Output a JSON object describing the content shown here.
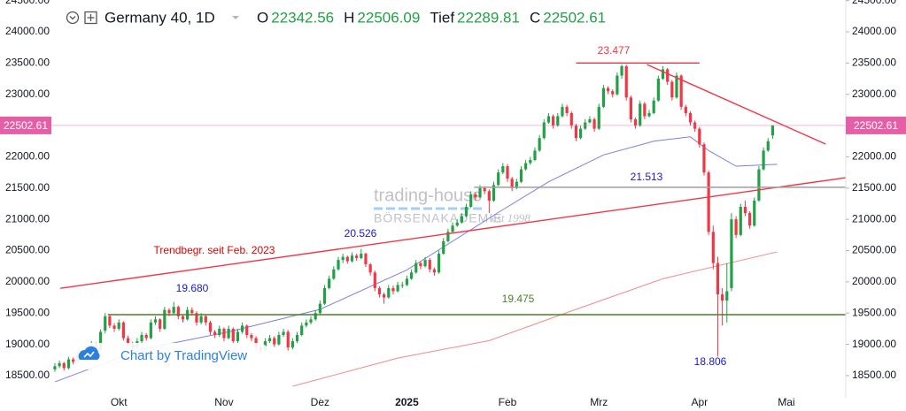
{
  "chart_data": {
    "type": "candlestick",
    "title": "Germany 40, 1D",
    "ohlc_labels": [
      "O",
      "H",
      "Tief",
      "C"
    ],
    "colors": {
      "up": "#22a046",
      "down": "#f23645",
      "last": "#e55fa6"
    },
    "xlim": [
      -12,
      173
    ],
    "ylim": [
      18146,
      24509
    ],
    "grid": false,
    "yticks": [
      {
        "value": 18500,
        "label": "18500.00"
      },
      {
        "value": 19000,
        "label": "19000.00"
      },
      {
        "value": 19500,
        "label": "19500.00"
      },
      {
        "value": 20000,
        "label": "20000.00"
      },
      {
        "value": 20500,
        "label": "20500.00"
      },
      {
        "value": 21000,
        "label": "21000.00"
      },
      {
        "value": 21500,
        "label": "21500.00"
      },
      {
        "value": 22000,
        "label": "22000.00"
      },
      {
        "value": 22500,
        "label": "22500.00"
      },
      {
        "value": 23000,
        "label": "23000.00"
      },
      {
        "value": 23500,
        "label": "23500.00"
      },
      {
        "value": 24000,
        "label": "24000.00"
      },
      {
        "value": 24500,
        "label": "24500.00"
      }
    ],
    "xticks": [
      {
        "value": 14,
        "label": "Okt"
      },
      {
        "value": 37,
        "label": "Nov"
      },
      {
        "value": 58,
        "label": "Dez"
      },
      {
        "value": 77,
        "label": "2025"
      },
      {
        "value": 99,
        "label": "Feb"
      },
      {
        "value": 119,
        "label": "Mrz"
      },
      {
        "value": 141,
        "label": "Apr"
      },
      {
        "value": 160,
        "label": "Mai"
      }
    ],
    "ohlc": [
      [
        18600,
        18700,
        18560,
        18650
      ],
      [
        18650,
        18740,
        18620,
        18700
      ],
      [
        18700,
        18720,
        18580,
        18620
      ],
      [
        18620,
        18800,
        18600,
        18760
      ],
      [
        18760,
        18790,
        18680,
        18720
      ],
      [
        18720,
        18890,
        18700,
        18850
      ],
      [
        18850,
        18880,
        18760,
        18800
      ],
      [
        18800,
        18990,
        18780,
        18950
      ],
      [
        18950,
        19050,
        18920,
        19000
      ],
      [
        19000,
        19030,
        18880,
        18920
      ],
      [
        18920,
        19240,
        18900,
        19200
      ],
      [
        19220,
        19500,
        19180,
        19450
      ],
      [
        19450,
        19480,
        19260,
        19300
      ],
      [
        19300,
        19340,
        19200,
        19250
      ],
      [
        19250,
        19400,
        19220,
        19350
      ],
      [
        19350,
        19370,
        19060,
        19100
      ],
      [
        19100,
        19140,
        18960,
        19000
      ],
      [
        19000,
        19040,
        18900,
        18950
      ],
      [
        18950,
        19100,
        18920,
        19050
      ],
      [
        19050,
        19200,
        19020,
        19150
      ],
      [
        19150,
        19180,
        19060,
        19100
      ],
      [
        19100,
        19400,
        19080,
        19350
      ],
      [
        19350,
        19450,
        19310,
        19400
      ],
      [
        19400,
        19420,
        19200,
        19250
      ],
      [
        19250,
        19600,
        19230,
        19550
      ],
      [
        19550,
        19580,
        19450,
        19500
      ],
      [
        19500,
        19680,
        19470,
        19600
      ],
      [
        19600,
        19620,
        19400,
        19450
      ],
      [
        19450,
        19480,
        19350,
        19400
      ],
      [
        19400,
        19600,
        19380,
        19550
      ],
      [
        19550,
        19590,
        19460,
        19500
      ],
      [
        19500,
        19530,
        19300,
        19350
      ],
      [
        19350,
        19500,
        19320,
        19450
      ],
      [
        19450,
        19470,
        19300,
        19350
      ],
      [
        19350,
        19380,
        19150,
        19200
      ],
      [
        19200,
        19230,
        19100,
        19150
      ],
      [
        19150,
        19300,
        19120,
        19250
      ],
      [
        19250,
        19270,
        19050,
        19100
      ],
      [
        19100,
        19300,
        19080,
        19250
      ],
      [
        19250,
        19270,
        19000,
        19050
      ],
      [
        19050,
        19250,
        19020,
        19200
      ],
      [
        19200,
        19350,
        19170,
        19300
      ],
      [
        19300,
        19320,
        19100,
        19150
      ],
      [
        19150,
        19180,
        19050,
        19100
      ],
      [
        19100,
        19130,
        18900,
        18950
      ],
      [
        18950,
        18980,
        18850,
        18900
      ],
      [
        18900,
        19100,
        18880,
        19050
      ],
      [
        19050,
        19150,
        19020,
        19100
      ],
      [
        19100,
        19130,
        18960,
        19000
      ],
      [
        19000,
        19200,
        18980,
        19150
      ],
      [
        19150,
        19250,
        19120,
        19200
      ],
      [
        19200,
        19230,
        18900,
        18950
      ],
      [
        18950,
        19100,
        18920,
        19050
      ],
      [
        19050,
        19200,
        19020,
        19150
      ],
      [
        19150,
        19350,
        19130,
        19300
      ],
      [
        19300,
        19400,
        19270,
        19350
      ],
      [
        19350,
        19450,
        19320,
        19400
      ],
      [
        19400,
        19550,
        19380,
        19500
      ],
      [
        19500,
        19700,
        19480,
        19650
      ],
      [
        19650,
        19950,
        19630,
        19900
      ],
      [
        19900,
        20100,
        19880,
        20050
      ],
      [
        20050,
        20250,
        20030,
        20200
      ],
      [
        20200,
        20400,
        20180,
        20350
      ],
      [
        20350,
        20450,
        20300,
        20400
      ],
      [
        20400,
        20420,
        20290,
        20330
      ],
      [
        20330,
        20470,
        20310,
        20420
      ],
      [
        20420,
        20450,
        20340,
        20380
      ],
      [
        20380,
        20526,
        20360,
        20450
      ],
      [
        20450,
        20470,
        20240,
        20280
      ],
      [
        20280,
        20300,
        20100,
        20150
      ],
      [
        20150,
        20180,
        19850,
        19900
      ],
      [
        19900,
        19930,
        19750,
        19800
      ],
      [
        19800,
        19830,
        19650,
        19750
      ],
      [
        19750,
        19950,
        19730,
        19900
      ],
      [
        19900,
        19940,
        19800,
        19850
      ],
      [
        19850,
        20000,
        19830,
        19950
      ],
      [
        19950,
        20000,
        19900,
        19950
      ],
      [
        19950,
        20100,
        19930,
        20050
      ],
      [
        20050,
        20200,
        20030,
        20150
      ],
      [
        20150,
        20350,
        20130,
        20300
      ],
      [
        20300,
        20330,
        20200,
        20250
      ],
      [
        20250,
        20400,
        20230,
        20350
      ],
      [
        20350,
        20380,
        20150,
        20200
      ],
      [
        20200,
        20230,
        20100,
        20150
      ],
      [
        20150,
        20500,
        20130,
        20450
      ],
      [
        20450,
        20700,
        20430,
        20650
      ],
      [
        20650,
        20850,
        20630,
        20800
      ],
      [
        20800,
        20950,
        20780,
        20900
      ],
      [
        20900,
        21000,
        20880,
        20950
      ],
      [
        20950,
        21100,
        20930,
        21050
      ],
      [
        21050,
        21250,
        21030,
        21200
      ],
      [
        21200,
        21450,
        21180,
        21400
      ],
      [
        21400,
        21430,
        21300,
        21350
      ],
      [
        21350,
        21550,
        21330,
        21500
      ],
      [
        21500,
        21530,
        21400,
        21450
      ],
      [
        21450,
        21480,
        21100,
        21300
      ],
      [
        21300,
        21600,
        21280,
        21550
      ],
      [
        21550,
        21800,
        21530,
        21750
      ],
      [
        21750,
        21900,
        21720,
        21850
      ],
      [
        21850,
        21880,
        21600,
        21650
      ],
      [
        21650,
        21680,
        21450,
        21500
      ],
      [
        21500,
        21650,
        21480,
        21600
      ],
      [
        21600,
        21850,
        21580,
        21800
      ],
      [
        21800,
        21950,
        21780,
        21900
      ],
      [
        21900,
        22000,
        21870,
        21950
      ],
      [
        21950,
        22150,
        21930,
        22100
      ],
      [
        22100,
        22350,
        22080,
        22300
      ],
      [
        22300,
        22600,
        22280,
        22550
      ],
      [
        22550,
        22700,
        22530,
        22650
      ],
      [
        22650,
        22680,
        22450,
        22500
      ],
      [
        22500,
        22700,
        22480,
        22650
      ],
      [
        22650,
        22850,
        22630,
        22800
      ],
      [
        22800,
        22830,
        22650,
        22700
      ],
      [
        22700,
        22730,
        22450,
        22500
      ],
      [
        22500,
        22530,
        22250,
        22300
      ],
      [
        22300,
        22500,
        22280,
        22450
      ],
      [
        22450,
        22600,
        22430,
        22550
      ],
      [
        22550,
        22650,
        22530,
        22600
      ],
      [
        22600,
        22630,
        22400,
        22450
      ],
      [
        22450,
        22850,
        22430,
        22800
      ],
      [
        22800,
        23150,
        22780,
        23100
      ],
      [
        23100,
        23130,
        23000,
        23050
      ],
      [
        23050,
        23080,
        22950,
        23000
      ],
      [
        23000,
        23350,
        22980,
        23300
      ],
      [
        23300,
        23477,
        23250,
        23450
      ],
      [
        23450,
        23470,
        22900,
        22950
      ],
      [
        22950,
        22980,
        22550,
        22600
      ],
      [
        22600,
        22630,
        22450,
        22500
      ],
      [
        22500,
        22900,
        22480,
        22850
      ],
      [
        22850,
        22880,
        22600,
        22650
      ],
      [
        22650,
        22750,
        22630,
        22700
      ],
      [
        22700,
        22950,
        22680,
        22900
      ],
      [
        22900,
        23300,
        22880,
        23250
      ],
      [
        23250,
        23450,
        23230,
        23400
      ],
      [
        23400,
        23420,
        23150,
        23200
      ],
      [
        23200,
        23230,
        22900,
        22950
      ],
      [
        22950,
        23350,
        22930,
        23300
      ],
      [
        23300,
        23320,
        22750,
        22800
      ],
      [
        22800,
        22830,
        22650,
        22700
      ],
      [
        22700,
        22730,
        22500,
        22550
      ],
      [
        22550,
        22580,
        22400,
        22450
      ],
      [
        22450,
        22480,
        22150,
        22200
      ],
      [
        22200,
        22230,
        21700,
        21750
      ],
      [
        21750,
        21780,
        20750,
        20800
      ],
      [
        20800,
        20900,
        20200,
        20300
      ],
      [
        20300,
        20400,
        18806,
        19800
      ],
      [
        19800,
        19900,
        19300,
        19700
      ],
      [
        19700,
        20300,
        19350,
        19850
      ],
      [
        19900,
        21100,
        19850,
        21000
      ],
      [
        21000,
        21050,
        20700,
        20750
      ],
      [
        20750,
        21250,
        20730,
        21200
      ],
      [
        21200,
        21300,
        21050,
        21100
      ],
      [
        21100,
        21130,
        20850,
        20900
      ],
      [
        20900,
        21350,
        20880,
        21300
      ],
      [
        21300,
        21850,
        21280,
        21800
      ],
      [
        21800,
        22150,
        21780,
        22100
      ],
      [
        22100,
        22300,
        22080,
        22250
      ],
      [
        22342.56,
        22506.09,
        22289.81,
        22502.61
      ]
    ],
    "moving_averages": [
      {
        "color": "#7b7fe0",
        "x": [
          0,
          19,
          38,
          58,
          77,
          97,
          108,
          120,
          131,
          139,
          143,
          149,
          158
        ],
        "values": [
          18400,
          18920,
          19200,
          19560,
          20190,
          21110,
          21600,
          22030,
          22250,
          22320,
          22100,
          21850,
          21880
        ]
      },
      {
        "color": "#f08a8a",
        "x": [
          52,
          75,
          95,
          114,
          133,
          158
        ],
        "values": [
          18330,
          18780,
          19060,
          19560,
          20050,
          20480
        ]
      }
    ],
    "lines": [
      {
        "color": "#f23645",
        "x": [
          1.2,
          173
        ],
        "y": [
          19897,
          21666
        ]
      },
      {
        "color": "#f23645",
        "x": [
          129.5,
          168.6
        ],
        "y": [
          23477,
          22204
        ]
      },
      {
        "color": "#f23645",
        "x": [
          114,
          141
        ],
        "y": [
          23500,
          23500
        ]
      },
      {
        "color": "#9e9e9e",
        "x": [
          91.7,
          173
        ],
        "y": [
          21513,
          21513
        ]
      },
      {
        "color": "#4e7f2a",
        "x": [
          11.6,
          173
        ],
        "y": [
          19475,
          19475
        ]
      }
    ],
    "annotations": [
      {
        "text": "23.477",
        "color": "#f23645"
      },
      {
        "text": "21.513",
        "color": "#1a1acc"
      },
      {
        "text": "20.526",
        "color": "#1a1acc"
      },
      {
        "text": "19.680",
        "color": "#1a1acc"
      },
      {
        "text": "19.475",
        "color": "#4e7f2a"
      },
      {
        "text": "18.806",
        "color": "#1a1acc"
      },
      {
        "text": "Trendbegr. seit Feb. 2023",
        "color": "#e00000"
      }
    ],
    "branding": {
      "watermark": "trading-house",
      "watermark_sub": "BÖRSENAKADEMIE",
      "watermark_est": "est 1998",
      "credit": "Chart by TradingView"
    }
  }
}
